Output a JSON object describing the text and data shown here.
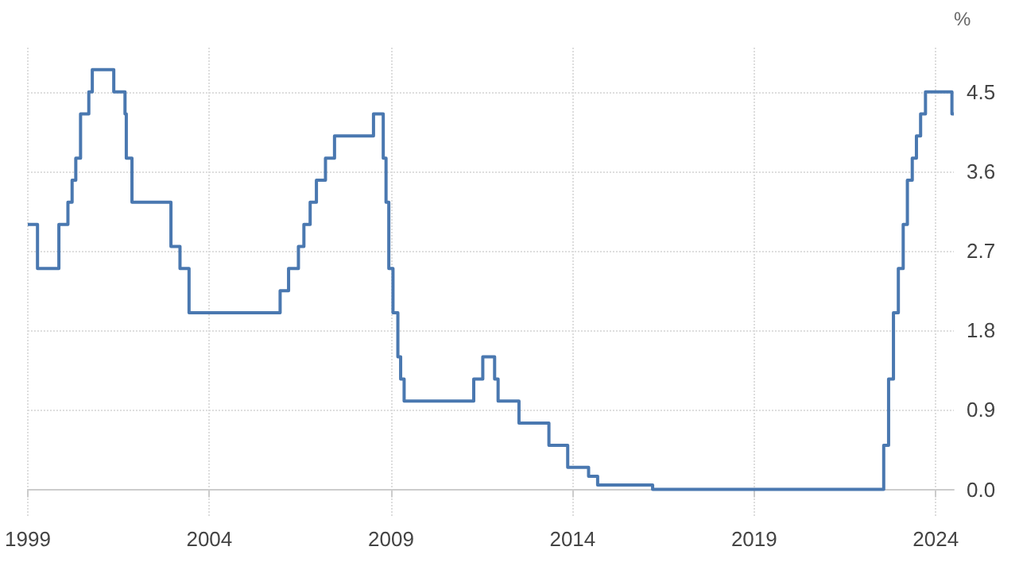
{
  "chart_data": {
    "type": "step",
    "ylabel": "%",
    "x": [
      "1999-01-01",
      "1999-04-09",
      "1999-11-10",
      "2000-02-09",
      "2000-03-22",
      "2000-04-28",
      "2000-06-15",
      "2000-09-06",
      "2000-10-11",
      "2001-05-15",
      "2001-09-05",
      "2001-09-18",
      "2001-11-14",
      "2002-12-11",
      "2003-03-12",
      "2003-06-11",
      "2005-12-13",
      "2006-03-08",
      "2006-06-15",
      "2006-08-09",
      "2006-10-11",
      "2006-12-13",
      "2007-03-14",
      "2007-06-13",
      "2008-07-09",
      "2008-10-15",
      "2008-11-12",
      "2008-12-10",
      "2009-01-21",
      "2009-03-11",
      "2009-04-08",
      "2009-05-13",
      "2011-04-13",
      "2011-07-13",
      "2011-11-09",
      "2011-12-14",
      "2012-07-11",
      "2013-05-08",
      "2013-11-13",
      "2014-06-11",
      "2014-09-10",
      "2016-03-16",
      "2022-07-27",
      "2022-09-14",
      "2022-11-02",
      "2022-12-21",
      "2023-02-08",
      "2023-03-22",
      "2023-05-10",
      "2023-06-21",
      "2023-08-02",
      "2023-09-20",
      "2024-06-12",
      "2024-07-01"
    ],
    "series": [
      {
        "color": "#4a78b0",
        "values": [
          3.0,
          2.5,
          3.0,
          3.25,
          3.5,
          3.75,
          4.25,
          4.5,
          4.75,
          4.5,
          4.25,
          3.75,
          3.25,
          2.75,
          2.5,
          2.0,
          2.25,
          2.5,
          2.75,
          3.0,
          3.25,
          3.5,
          3.75,
          4.0,
          4.25,
          3.75,
          3.25,
          2.5,
          2.0,
          1.5,
          1.25,
          1.0,
          1.25,
          1.5,
          1.25,
          1.0,
          0.75,
          0.5,
          0.25,
          0.15,
          0.05,
          0.0,
          0.5,
          1.25,
          2.0,
          2.5,
          3.0,
          3.5,
          3.75,
          4.0,
          4.25,
          4.5,
          4.25,
          4.25
        ]
      }
    ],
    "xlim": [
      "1999-01-01",
      "2024-07-01"
    ],
    "xticks": [
      "1999",
      "2004",
      "2009",
      "2014",
      "2019",
      "2024"
    ],
    "ylim": [
      -0.3,
      5.0
    ],
    "yticks": [
      {
        "value": 0,
        "label": "0.0"
      },
      {
        "value": 0.9,
        "label": "0.9"
      },
      {
        "value": 1.8,
        "label": "1.8"
      },
      {
        "value": 2.7,
        "label": "2.7"
      },
      {
        "value": 3.6,
        "label": "3.6"
      },
      {
        "value": 4.5,
        "label": "4.5"
      }
    ],
    "grid": true,
    "marker": "none",
    "line_style": "solid"
  }
}
